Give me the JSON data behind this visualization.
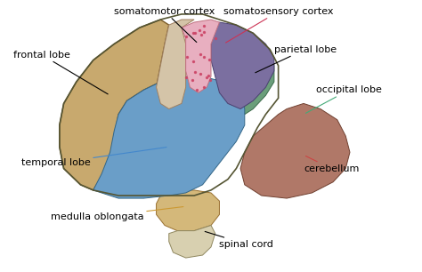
{
  "background_color": "#ffffff",
  "regions": {
    "frontal_lobe": {
      "color": "#c8a96e",
      "ec": "#7a5c2a",
      "lw": 1.0
    },
    "somatomotor": {
      "color": "#d4c4a8",
      "ec": "#a08060",
      "lw": 0.7
    },
    "somatosensory": {
      "color": "#e8afc0",
      "ec": "#c07080",
      "lw": 0.7
    },
    "parietal_lobe": {
      "color": "#7b6fa0",
      "ec": "#4a4070",
      "lw": 0.7
    },
    "occipital_lobe": {
      "color": "#6a9e7a",
      "ec": "#3a6a4a",
      "lw": 0.7
    },
    "temporal_lobe": {
      "color": "#6a9ec8",
      "ec": "#336688",
      "lw": 0.7
    },
    "cerebellum": {
      "color": "#b07868",
      "ec": "#704030",
      "lw": 0.7
    },
    "medulla": {
      "color": "#d4b87a",
      "ec": "#997030",
      "lw": 0.7
    },
    "spinal_cord": {
      "color": "#d8d0b0",
      "ec": "#908860",
      "lw": 0.7
    }
  },
  "annotations": [
    {
      "text": "frontal lobe",
      "tpos": [
        0.03,
        0.8
      ],
      "aend": [
        0.26,
        0.65
      ],
      "ac": "black",
      "ha": "left"
    },
    {
      "text": "somatomotor cortex",
      "tpos": [
        0.27,
        0.96
      ],
      "aend": [
        0.47,
        0.84
      ],
      "ac": "black",
      "ha": "left"
    },
    {
      "text": "somatosensory cortex",
      "tpos": [
        0.53,
        0.96
      ],
      "aend": [
        0.53,
        0.84
      ],
      "ac": "#cc3355",
      "ha": "left"
    },
    {
      "text": "parietal lobe",
      "tpos": [
        0.65,
        0.82
      ],
      "aend": [
        0.6,
        0.73
      ],
      "ac": "black",
      "ha": "left"
    },
    {
      "text": "occipital lobe",
      "tpos": [
        0.75,
        0.67
      ],
      "aend": [
        0.72,
        0.58
      ],
      "ac": "#44aa77",
      "ha": "left"
    },
    {
      "text": "cerebellum",
      "tpos": [
        0.72,
        0.38
      ],
      "aend": [
        0.72,
        0.43
      ],
      "ac": "#cc4444",
      "ha": "left"
    },
    {
      "text": "temporal lobe",
      "tpos": [
        0.05,
        0.4
      ],
      "aend": [
        0.4,
        0.46
      ],
      "ac": "#4488cc",
      "ha": "left"
    },
    {
      "text": "medulla oblongata",
      "tpos": [
        0.12,
        0.2
      ],
      "aend": [
        0.44,
        0.24
      ],
      "ac": "#cc9933",
      "ha": "left"
    },
    {
      "text": "spinal cord",
      "tpos": [
        0.52,
        0.1
      ],
      "aend": [
        0.48,
        0.15
      ],
      "ac": "black",
      "ha": "left"
    }
  ]
}
